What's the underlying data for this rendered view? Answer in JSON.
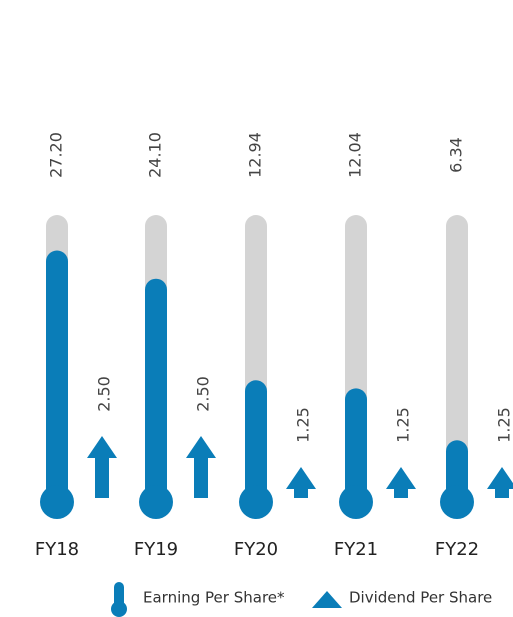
{
  "chart_data": {
    "type": "bar",
    "categories": [
      "FY18",
      "FY19",
      "FY20",
      "FY21",
      "FY22"
    ],
    "series": [
      {
        "name": "Earning Per Share*",
        "color": "#0a7db8",
        "values": [
          27.2,
          24.1,
          12.94,
          12.04,
          6.34
        ],
        "value_labels": [
          "27.20",
          "24.10",
          "12.94",
          "12.04",
          "6.34"
        ]
      },
      {
        "name": "Dividend Per Share",
        "color": "#0a7db8",
        "axis": "y2",
        "values": [
          2.5,
          2.5,
          1.25,
          1.25,
          1.25
        ],
        "value_labels": [
          "2.50",
          "2.50",
          "1.25",
          "1.25",
          "1.25"
        ]
      }
    ],
    "ylim": [
      0,
      30
    ],
    "y2lim": [
      0,
      11
    ],
    "track_color": "#d4d4d4"
  }
}
